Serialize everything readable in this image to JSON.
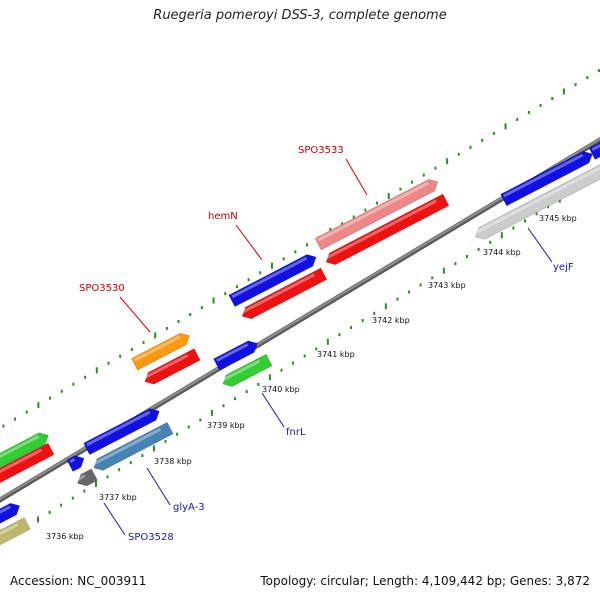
{
  "map": {
    "title": "Ruegeria pomeroyi DSS-3, complete genome",
    "accession_label": "Accession: NC_003911",
    "summary_label": "Topology: circular; Length: 4,109,442 bp; Genes: 3,872",
    "colors": {
      "backbone": "#8f8f8f",
      "tick": "#2e8b22",
      "label_red": "#cc0000",
      "label_blue": "#1a1aa8",
      "forward_blue": "#1010e0",
      "red": "#ee1111",
      "pink": "#ee8888",
      "green": "#33cc33",
      "orange": "#ff9911",
      "steelblue": "#4682b4",
      "gray": "#666666",
      "lightgray": "#cccccc",
      "olive": "#bdb76b"
    },
    "kbp_labels": [
      "3736 kbp",
      "3737 kbp",
      "3738 kbp",
      "3739 kbp",
      "3740 kbp",
      "3741 kbp",
      "3742 kbp",
      "3743 kbp",
      "3744 kbp",
      "3745 kbp"
    ],
    "gene_labels": [
      {
        "text": "SPO3533",
        "color": "red"
      },
      {
        "text": "hemN",
        "color": "red"
      },
      {
        "text": "SPO3530",
        "color": "red"
      },
      {
        "text": "yejF",
        "color": "blue"
      },
      {
        "text": "fnrL",
        "color": "blue"
      },
      {
        "text": "glyA-3",
        "color": "blue"
      },
      {
        "text": "SPO3528",
        "color": "blue"
      }
    ]
  }
}
